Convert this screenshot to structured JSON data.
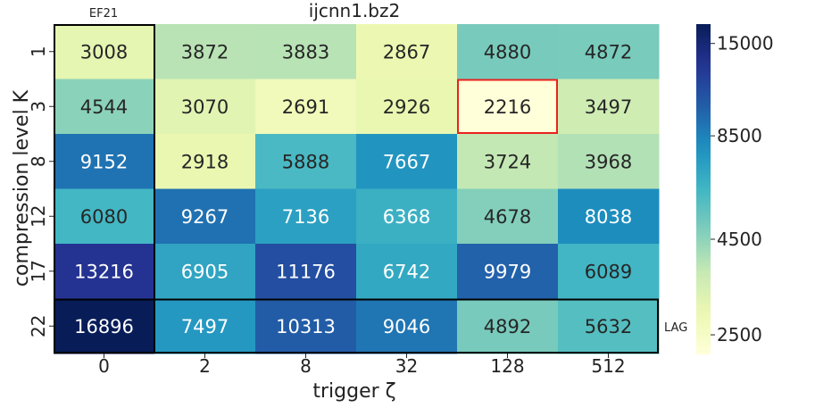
{
  "chart_data": {
    "type": "heatmap",
    "title": "ijcnn1.bz2",
    "xlabel": "trigger ζ",
    "ylabel": "compression level K",
    "x_categories": [
      "0",
      "2",
      "8",
      "32",
      "128",
      "512"
    ],
    "y_categories": [
      "1",
      "3",
      "8",
      "12",
      "17",
      "22"
    ],
    "values": [
      [
        3008,
        3872,
        3883,
        2867,
        4880,
        4872
      ],
      [
        4544,
        3070,
        2691,
        2926,
        2216,
        3497
      ],
      [
        9152,
        2918,
        5888,
        7667,
        3724,
        3968
      ],
      [
        6080,
        9267,
        7136,
        6368,
        4678,
        8038
      ],
      [
        13216,
        6905,
        11176,
        6742,
        9979,
        6089
      ],
      [
        16896,
        7497,
        10313,
        9046,
        4892,
        5632
      ]
    ],
    "colormap": "YlGnBu",
    "colorbar": {
      "scale": "log",
      "range": [
        2216,
        16896
      ],
      "ticks": [
        "2500",
        "4500",
        "8500",
        "15000"
      ]
    },
    "annotations": {
      "column_label": "EF21",
      "row_label": "LAG",
      "highlight_cell": {
        "row": 1,
        "col": 4,
        "color": "#e8231e"
      }
    },
    "grid": false
  }
}
